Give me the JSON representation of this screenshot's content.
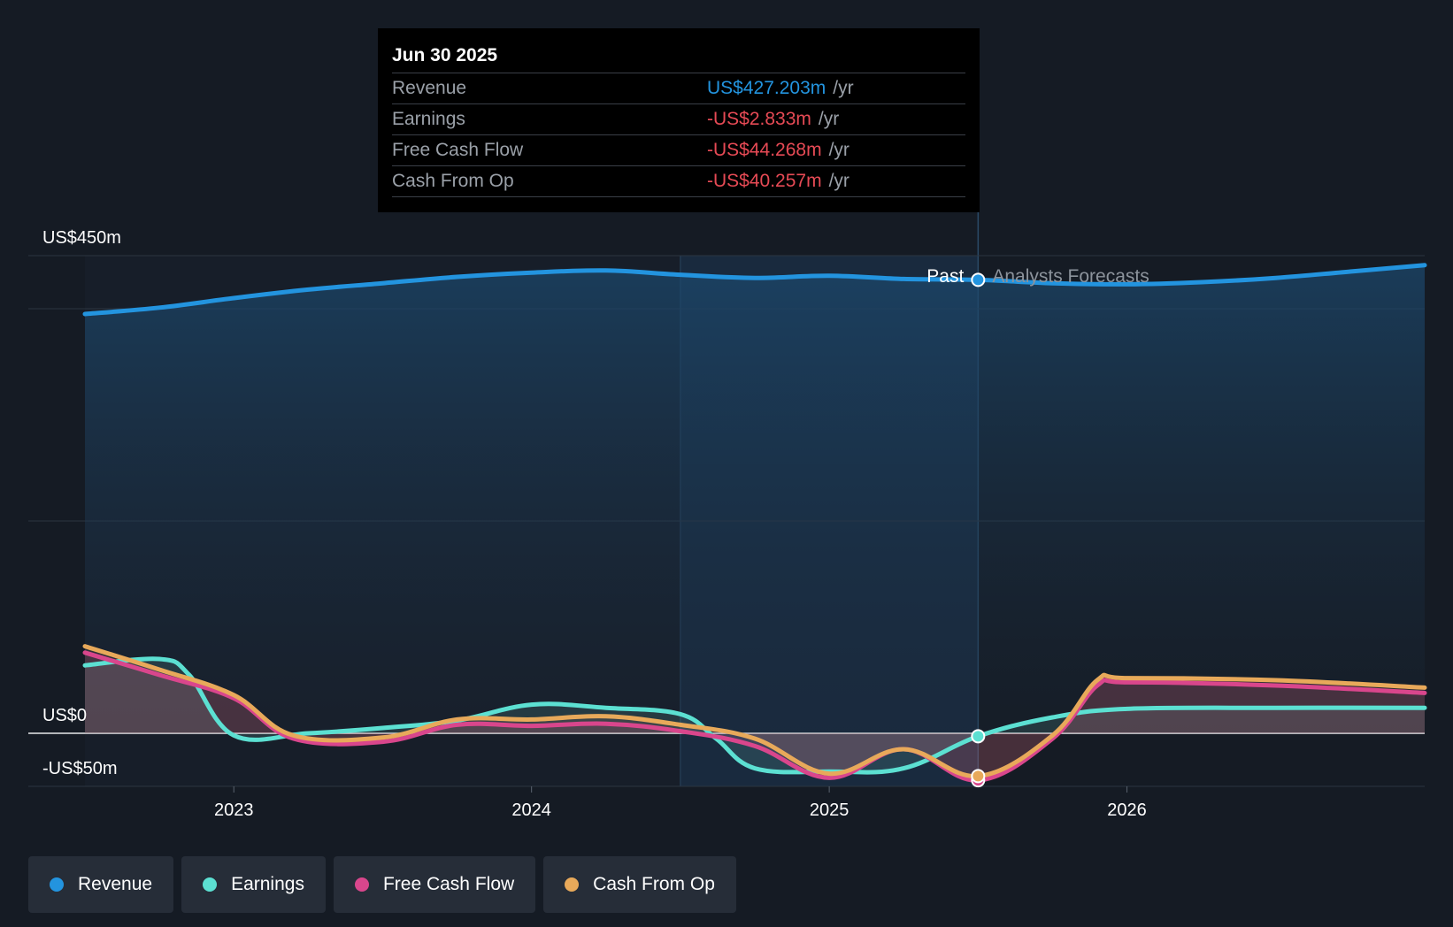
{
  "tooltip": {
    "date": "Jun 30 2025",
    "rows": [
      {
        "label": "Revenue",
        "value": "US$427.203m",
        "unit": "/yr",
        "color": "#2394df"
      },
      {
        "label": "Earnings",
        "value": "-US$2.833m",
        "unit": "/yr",
        "color": "#e64a55"
      },
      {
        "label": "Free Cash Flow",
        "value": "-US$44.268m",
        "unit": "/yr",
        "color": "#e64a55"
      },
      {
        "label": "Cash From Op",
        "value": "-US$40.257m",
        "unit": "/yr",
        "color": "#e64a55"
      }
    ]
  },
  "labels": {
    "past": "Past",
    "forecast": "Analysts Forecasts"
  },
  "legend": [
    {
      "name": "Revenue",
      "color": "#2394df"
    },
    {
      "name": "Earnings",
      "color": "#5ce0d2"
    },
    {
      "name": "Free Cash Flow",
      "color": "#d9468c"
    },
    {
      "name": "Cash From Op",
      "color": "#e8a95a"
    }
  ],
  "chart_data": {
    "type": "line",
    "y_tick_labels": [
      "US$450m",
      "US$0",
      "-US$50m"
    ],
    "y_ticks": [
      450,
      0,
      -50
    ],
    "ylim": [
      -50,
      450
    ],
    "x_ticks": [
      2023,
      2024,
      2025,
      2026
    ],
    "xlim": [
      2022.5,
      2027.0
    ],
    "past_end": 2025.5,
    "highlight_start": 2024.5,
    "series": [
      {
        "name": "Revenue",
        "color": "#2394df",
        "points": [
          [
            2022.5,
            395
          ],
          [
            2022.75,
            401
          ],
          [
            2023.0,
            410
          ],
          [
            2023.25,
            418
          ],
          [
            2023.5,
            424
          ],
          [
            2023.75,
            430
          ],
          [
            2024.0,
            434
          ],
          [
            2024.25,
            436
          ],
          [
            2024.5,
            432
          ],
          [
            2024.75,
            429
          ],
          [
            2025.0,
            431
          ],
          [
            2025.25,
            428
          ],
          [
            2025.5,
            427.2
          ],
          [
            2025.75,
            424
          ],
          [
            2026.0,
            423
          ],
          [
            2026.25,
            425
          ],
          [
            2026.5,
            429
          ],
          [
            2026.75,
            435
          ],
          [
            2027.0,
            441
          ]
        ]
      },
      {
        "name": "Earnings",
        "color": "#5ce0d2",
        "points": [
          [
            2022.5,
            64
          ],
          [
            2022.75,
            70
          ],
          [
            2022.85,
            55
          ],
          [
            2023.0,
            -2
          ],
          [
            2023.25,
            0
          ],
          [
            2023.5,
            5
          ],
          [
            2023.75,
            12
          ],
          [
            2024.0,
            27
          ],
          [
            2024.25,
            24
          ],
          [
            2024.5,
            18
          ],
          [
            2024.62,
            -5
          ],
          [
            2024.75,
            -33
          ],
          [
            2025.0,
            -36
          ],
          [
            2025.25,
            -33
          ],
          [
            2025.5,
            -2.8
          ],
          [
            2025.75,
            15
          ],
          [
            2026.0,
            23
          ],
          [
            2026.5,
            24
          ],
          [
            2027.0,
            24
          ]
        ]
      },
      {
        "name": "Free Cash Flow",
        "color": "#d9468c",
        "points": [
          [
            2022.5,
            76
          ],
          [
            2022.75,
            55
          ],
          [
            2023.0,
            33
          ],
          [
            2023.2,
            -5
          ],
          [
            2023.5,
            -8
          ],
          [
            2023.75,
            8
          ],
          [
            2024.0,
            7
          ],
          [
            2024.25,
            9
          ],
          [
            2024.5,
            2
          ],
          [
            2024.75,
            -12
          ],
          [
            2025.0,
            -42
          ],
          [
            2025.25,
            -15
          ],
          [
            2025.5,
            -44.3
          ],
          [
            2025.75,
            -5
          ],
          [
            2025.9,
            45
          ],
          [
            2026.0,
            48
          ],
          [
            2026.5,
            45
          ],
          [
            2027.0,
            38
          ]
        ]
      },
      {
        "name": "Cash From Op",
        "color": "#e8a95a",
        "points": [
          [
            2022.5,
            82
          ],
          [
            2022.75,
            60
          ],
          [
            2023.0,
            36
          ],
          [
            2023.2,
            -2
          ],
          [
            2023.5,
            -4
          ],
          [
            2023.75,
            13
          ],
          [
            2024.0,
            13
          ],
          [
            2024.25,
            16
          ],
          [
            2024.5,
            8
          ],
          [
            2024.75,
            -5
          ],
          [
            2025.0,
            -38
          ],
          [
            2025.25,
            -15
          ],
          [
            2025.5,
            -40.3
          ],
          [
            2025.75,
            -2
          ],
          [
            2025.9,
            50
          ],
          [
            2026.0,
            52
          ],
          [
            2026.5,
            50
          ],
          [
            2027.0,
            43
          ]
        ]
      }
    ]
  }
}
